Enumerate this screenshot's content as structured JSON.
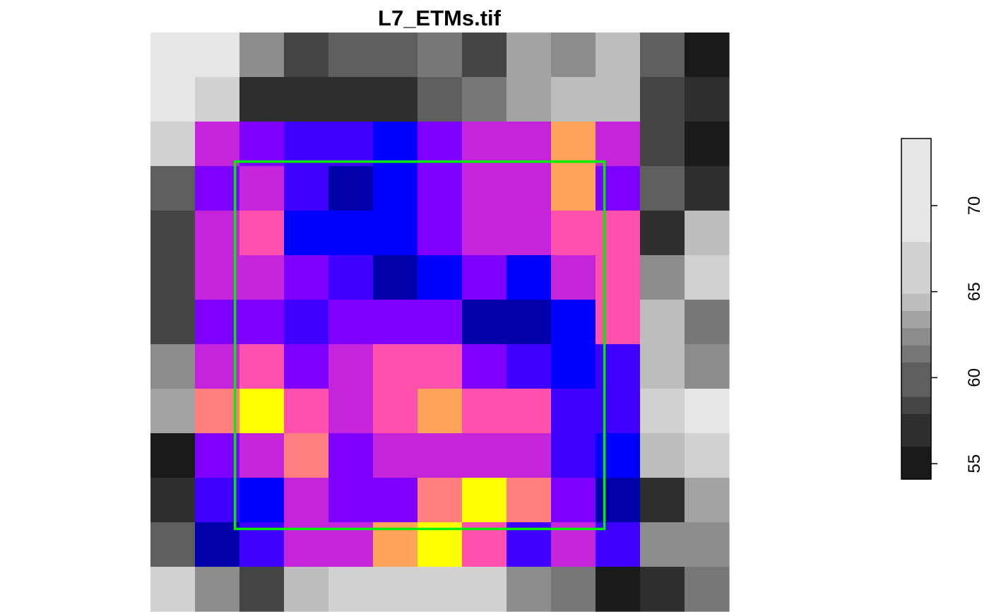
{
  "chart_data": {
    "type": "heatmap",
    "title": "L7_ETMs.tif",
    "rows": 13,
    "cols": 13,
    "cells": [
      [
        "#e6e6e6",
        "#e6e6e6",
        "#8c8c8c",
        "#454545",
        "#5e5e5e",
        "#5e5e5e",
        "#777777",
        "#454545",
        "#a3a3a3",
        "#8c8c8c",
        "#bdbdbd",
        "#5e5e5e",
        "#1a1a1a"
      ],
      [
        "#e6e6e6",
        "#d1d1d1",
        "#2e2e2e",
        "#2e2e2e",
        "#2e2e2e",
        "#2e2e2e",
        "#5e5e5e",
        "#777777",
        "#a3a3a3",
        "#bdbdbd",
        "#bdbdbd",
        "#454545",
        "#2e2e2e"
      ],
      [
        "#d1d1d1",
        "#c425da",
        "#8000ff",
        "#4000ff",
        "#4000ff",
        "#0000ff",
        "#8000ff",
        "#c425da",
        "#c425da",
        "#ffa35b",
        "#c425da",
        "#454545",
        "#1a1a1a"
      ],
      [
        "#5e5e5e",
        "#8000ff",
        "#c425da",
        "#4000ff",
        "#0000aa",
        "#0000ff",
        "#8000ff",
        "#c425da",
        "#c425da",
        "#ffa35b",
        "#8000ff",
        "#5e5e5e",
        "#2e2e2e"
      ],
      [
        "#454545",
        "#c425da",
        "#ff50ad",
        "#0000ff",
        "#0000ff",
        "#0000ff",
        "#8000ff",
        "#c425da",
        "#c425da",
        "#ff50ad",
        "#ff50ad",
        "#2e2e2e",
        "#bdbdbd"
      ],
      [
        "#454545",
        "#c425da",
        "#c425da",
        "#8000ff",
        "#4000ff",
        "#0000aa",
        "#0000ff",
        "#8000ff",
        "#0000ff",
        "#c425da",
        "#ff50ad",
        "#8c8c8c",
        "#d1d1d1"
      ],
      [
        "#454545",
        "#8000ff",
        "#8000ff",
        "#4000ff",
        "#8000ff",
        "#8000ff",
        "#8000ff",
        "#0000aa",
        "#0000aa",
        "#0000ff",
        "#ff50ad",
        "#bdbdbd",
        "#777777"
      ],
      [
        "#8c8c8c",
        "#c425da",
        "#ff50ad",
        "#8000ff",
        "#c425da",
        "#ff50ad",
        "#ff50ad",
        "#8000ff",
        "#4000ff",
        "#0000ff",
        "#4000ff",
        "#bdbdbd",
        "#8c8c8c"
      ],
      [
        "#a3a3a3",
        "#ff7f7f",
        "#ffff00",
        "#ff50ad",
        "#c425da",
        "#ff50ad",
        "#ffa35b",
        "#ff50ad",
        "#ff50ad",
        "#4000ff",
        "#4000ff",
        "#d1d1d1",
        "#e6e6e6"
      ],
      [
        "#1a1a1a",
        "#8000ff",
        "#c425da",
        "#ff7f7f",
        "#8000ff",
        "#c425da",
        "#c425da",
        "#c425da",
        "#c425da",
        "#4000ff",
        "#0000ff",
        "#bdbdbd",
        "#d1d1d1"
      ],
      [
        "#2e2e2e",
        "#4000ff",
        "#0000ff",
        "#c425da",
        "#8000ff",
        "#8000ff",
        "#ff7f7f",
        "#ffff00",
        "#ff7f7f",
        "#8000ff",
        "#0000aa",
        "#2e2e2e",
        "#a3a3a3"
      ],
      [
        "#5e5e5e",
        "#0000aa",
        "#4000ff",
        "#c425da",
        "#c425da",
        "#ffa35b",
        "#ffff00",
        "#ff50ad",
        "#4000ff",
        "#c425da",
        "#4000ff",
        "#8c8c8c",
        "#8c8c8c"
      ],
      [
        "#d1d1d1",
        "#8c8c8c",
        "#454545",
        "#bdbdbd",
        "#d1d1d1",
        "#d1d1d1",
        "#d1d1d1",
        "#d1d1d1",
        "#8c8c8c",
        "#777777",
        "#1a1a1a",
        "#2e2e2e",
        "#777777"
      ]
    ],
    "overlay_box": {
      "color": "#00ee00",
      "col_start": 1.9,
      "col_end": 10.2,
      "row_start": 2.9,
      "row_end": 11.15
    },
    "legend": {
      "range": [
        54.1,
        73.9
      ],
      "ticks": [
        55,
        60,
        65,
        70
      ],
      "bins": [
        {
          "from": 54.1,
          "to": 56.0,
          "color": "#1a1a1a"
        },
        {
          "from": 56.0,
          "to": 57.9,
          "color": "#2e2e2e"
        },
        {
          "from": 57.9,
          "to": 58.9,
          "color": "#454545"
        },
        {
          "from": 58.9,
          "to": 60.9,
          "color": "#5e5e5e"
        },
        {
          "from": 60.9,
          "to": 61.9,
          "color": "#777777"
        },
        {
          "from": 61.9,
          "to": 62.9,
          "color": "#8c8c8c"
        },
        {
          "from": 62.9,
          "to": 63.9,
          "color": "#a3a3a3"
        },
        {
          "from": 63.9,
          "to": 64.9,
          "color": "#bdbdbd"
        },
        {
          "from": 64.9,
          "to": 67.9,
          "color": "#d1d1d1"
        },
        {
          "from": 67.9,
          "to": 73.9,
          "color": "#e6e6e6"
        }
      ]
    }
  }
}
